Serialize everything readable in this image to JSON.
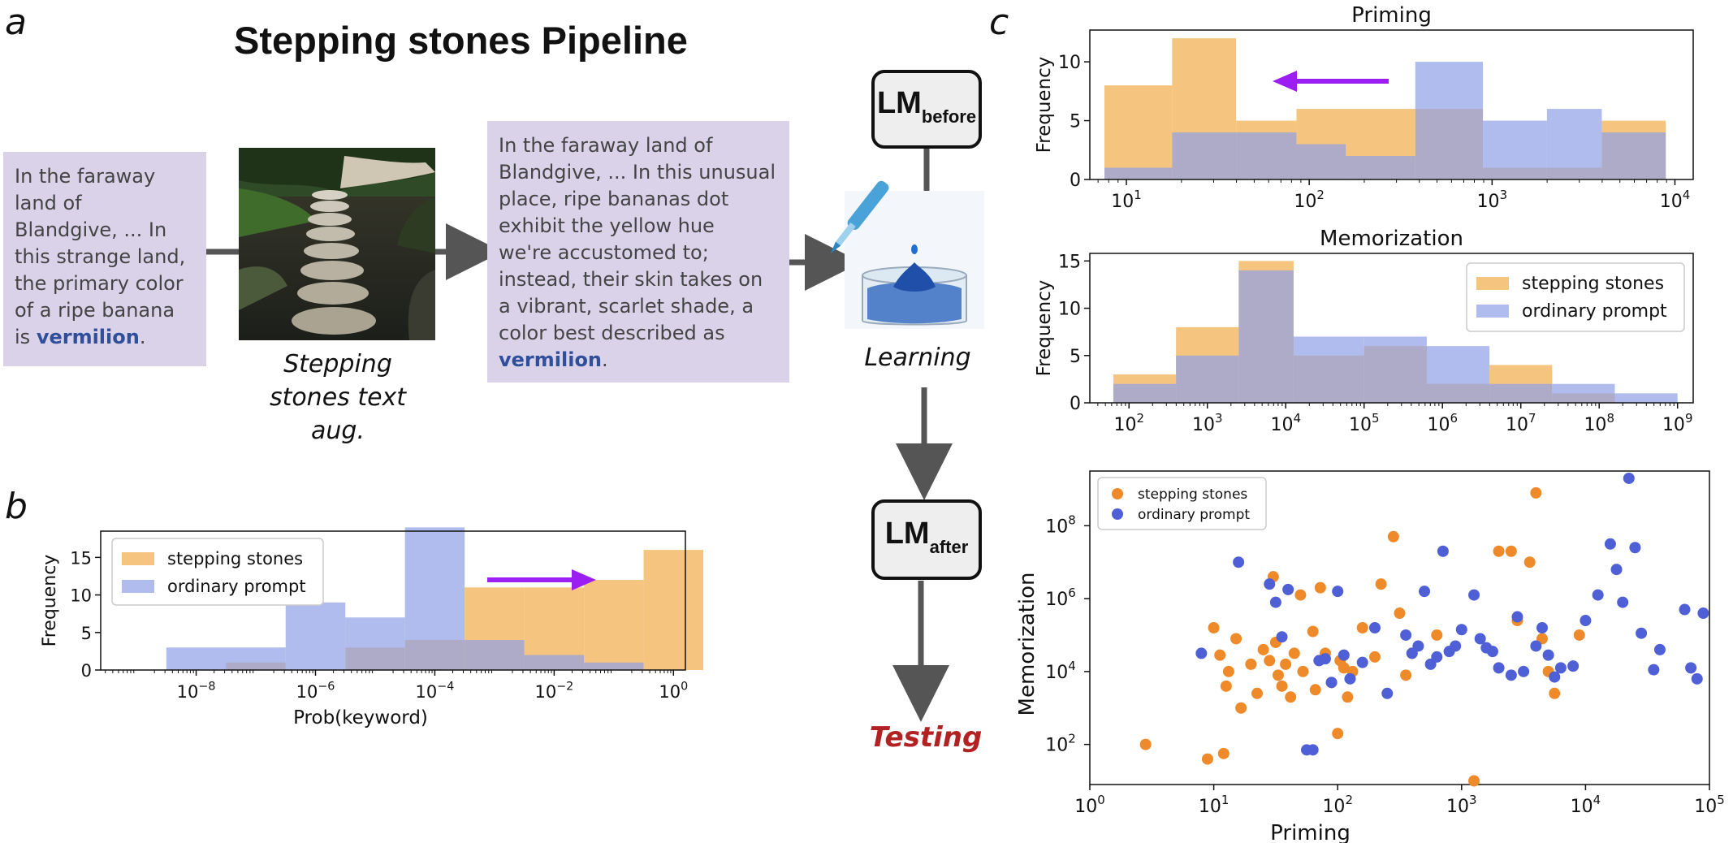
{
  "panel_labels": {
    "a": "a",
    "b": "b",
    "c": "c"
  },
  "pipeline": {
    "title": "Stepping stones Pipeline",
    "input_text": {
      "lines": [
        "In the faraway",
        "land of",
        "Blandgive, ... In",
        "this strange land,",
        "the primary color",
        "of a ripe banana"
      ],
      "last_prefix": "is ",
      "keyword": "vermilion",
      "last_suffix": "."
    },
    "augmented_text": {
      "lines": [
        "In the faraway land of",
        "Blandgive, ... In this unusual",
        "place, ripe bananas dot",
        "exhibit the yellow hue",
        "we're accustomed to;",
        "instead, their skin takes on",
        "a vibrant, scarlet shade, a",
        "color best described as"
      ],
      "keyword": "vermilion",
      "last_suffix": "."
    },
    "stepping_caption": [
      "Stepping",
      "stones text",
      "aug."
    ],
    "learning_caption": "Learning",
    "lm_before": {
      "main": "LM",
      "sub": "before"
    },
    "lm_after": {
      "main": "LM",
      "sub": "after"
    },
    "testing_label": "Testing"
  },
  "colors": {
    "stepping": "#f5c57f",
    "ordinary": "#8f9fe6",
    "overlap": "#9a8aa2",
    "arrow": "#9b1ff2",
    "scatter_stepping": "#ef8a2a",
    "scatter_ordinary": "#4f5fd6"
  },
  "chart_data": [
    {
      "panel": "b",
      "type": "histogram",
      "title": "",
      "xlabel": "Prob(keyword)",
      "ylabel": "Frequency",
      "x_scale": "log",
      "xlim_exp": [
        -9.6,
        0.2
      ],
      "ylim": [
        0,
        18.5
      ],
      "x_tick_exps": [
        -8,
        -6,
        -4,
        -2,
        0
      ],
      "y_ticks": [
        0,
        5,
        10,
        15
      ],
      "legend": {
        "position": "top-left",
        "entries": [
          "stepping stones",
          "ordinary prompt"
        ]
      },
      "series": [
        {
          "name": "stepping stones",
          "bin_edges_exp": [
            -8.5,
            -7.5,
            -6.5,
            -5.5,
            -4.5,
            -3.5,
            -2.5,
            -1.5,
            -0.5,
            0.5
          ],
          "counts": [
            0,
            1,
            0,
            3,
            4,
            11,
            11,
            12,
            16
          ]
        },
        {
          "name": "ordinary prompt",
          "bin_edges_exp": [
            -8.5,
            -6.5,
            -5.5,
            -4.5,
            -3.5,
            -2.5,
            -1.5,
            -0.5
          ],
          "counts": [
            3,
            9,
            7,
            19,
            4,
            2,
            1
          ]
        }
      ],
      "annotation": "arrow pointing right"
    },
    {
      "panel": "c-top",
      "type": "histogram",
      "title": "Priming",
      "xlabel": "",
      "ylabel": "Frequency",
      "x_scale": "log",
      "xlim_exp": [
        0.8,
        4.1
      ],
      "ylim": [
        0,
        12.7
      ],
      "x_tick_exps": [
        1,
        2,
        3,
        4
      ],
      "y_ticks": [
        0,
        5,
        10
      ],
      "legend": null,
      "series": [
        {
          "name": "stepping stones",
          "bin_edges_exp": [
            0.88,
            1.25,
            1.6,
            1.93,
            2.58,
            2.95,
            3.3,
            3.6,
            3.95
          ],
          "counts": [
            8,
            12,
            5,
            6,
            6,
            1,
            1,
            5
          ]
        },
        {
          "name": "ordinary prompt",
          "bin_edges_exp": [
            0.88,
            1.25,
            1.6,
            1.93,
            2.2,
            2.58,
            2.95,
            3.3,
            3.6,
            3.95
          ],
          "counts": [
            1,
            4,
            4,
            3,
            2,
            10,
            5,
            6,
            4
          ]
        }
      ],
      "annotation": "arrow pointing left"
    },
    {
      "panel": "c-middle",
      "type": "histogram",
      "title": "Memorization",
      "xlabel": "",
      "ylabel": "Frequency",
      "x_scale": "log",
      "xlim_exp": [
        1.5,
        9.2
      ],
      "ylim": [
        0,
        15.8
      ],
      "x_tick_exps": [
        2,
        3,
        4,
        5,
        6,
        7,
        8,
        9
      ],
      "y_ticks": [
        0,
        5,
        10,
        15
      ],
      "legend": {
        "position": "top-right",
        "entries": [
          "stepping stones",
          "ordinary prompt"
        ]
      },
      "series": [
        {
          "name": "stepping stones",
          "bin_edges_exp": [
            1.8,
            2.6,
            3.4,
            4.1,
            5.0,
            5.8,
            6.6,
            7.4,
            8.2,
            9.0
          ],
          "counts": [
            3,
            8,
            15,
            5,
            6,
            2,
            4,
            1,
            0
          ]
        },
        {
          "name": "ordinary prompt",
          "bin_edges_exp": [
            1.8,
            2.6,
            3.4,
            4.1,
            5.0,
            5.8,
            6.6,
            7.4,
            8.2,
            9.0
          ],
          "counts": [
            2,
            5,
            14,
            7,
            7,
            6,
            2,
            2,
            1
          ]
        }
      ]
    },
    {
      "panel": "c-bottom",
      "type": "scatter",
      "title": "",
      "xlabel": "Priming",
      "ylabel": "Memorization",
      "x_scale": "log",
      "y_scale": "log",
      "xlim_exp": [
        0,
        5
      ],
      "ylim_exp": [
        0.9,
        9.5
      ],
      "x_tick_exps": [
        0,
        1,
        2,
        3,
        4,
        5
      ],
      "y_tick_exps": [
        2,
        4,
        6,
        8
      ],
      "legend": {
        "position": "top-left",
        "entries": [
          "stepping stones",
          "ordinary prompt"
        ]
      },
      "series": [
        {
          "name": "stepping stones",
          "points_exp": [
            [
              0.45,
              2.0
            ],
            [
              0.95,
              1.6
            ],
            [
              1.0,
              5.2
            ],
            [
              1.05,
              4.45
            ],
            [
              1.08,
              1.75
            ],
            [
              1.1,
              3.6
            ],
            [
              1.12,
              4.0
            ],
            [
              1.18,
              4.9
            ],
            [
              1.22,
              3.0
            ],
            [
              1.3,
              4.2
            ],
            [
              1.35,
              3.4
            ],
            [
              1.4,
              4.6
            ],
            [
              1.45,
              4.3
            ],
            [
              1.48,
              6.6
            ],
            [
              1.5,
              4.8
            ],
            [
              1.52,
              3.9
            ],
            [
              1.55,
              3.6
            ],
            [
              1.58,
              4.2
            ],
            [
              1.62,
              3.3
            ],
            [
              1.65,
              4.5
            ],
            [
              1.7,
              6.1
            ],
            [
              1.72,
              4.0
            ],
            [
              1.8,
              5.1
            ],
            [
              1.82,
              3.5
            ],
            [
              1.86,
              6.3
            ],
            [
              1.9,
              4.5
            ],
            [
              1.95,
              3.7
            ],
            [
              2.0,
              2.3
            ],
            [
              2.02,
              4.3
            ],
            [
              2.05,
              4.1
            ],
            [
              2.08,
              3.3
            ],
            [
              2.12,
              4.0
            ],
            [
              2.2,
              5.2
            ],
            [
              2.3,
              4.4
            ],
            [
              2.35,
              6.4
            ],
            [
              2.45,
              7.7
            ],
            [
              2.5,
              5.6
            ],
            [
              2.55,
              3.9
            ],
            [
              2.6,
              4.5
            ],
            [
              2.8,
              5.0
            ],
            [
              3.1,
              1.0
            ],
            [
              3.3,
              7.3
            ],
            [
              3.4,
              7.3
            ],
            [
              3.45,
              5.4
            ],
            [
              3.55,
              7.0
            ],
            [
              3.6,
              8.9
            ],
            [
              3.65,
              4.9
            ],
            [
              3.7,
              4.0
            ],
            [
              3.75,
              3.4
            ],
            [
              3.95,
              5.0
            ]
          ]
        },
        {
          "name": "ordinary prompt",
          "points_exp": [
            [
              0.9,
              4.5
            ],
            [
              1.2,
              7.0
            ],
            [
              1.45,
              6.4
            ],
            [
              1.5,
              5.9
            ],
            [
              1.55,
              4.95
            ],
            [
              1.6,
              6.25
            ],
            [
              1.75,
              1.85
            ],
            [
              1.8,
              1.85
            ],
            [
              1.85,
              4.3
            ],
            [
              1.9,
              4.35
            ],
            [
              1.95,
              3.7
            ],
            [
              2.0,
              6.2
            ],
            [
              2.05,
              4.45
            ],
            [
              2.1,
              3.8
            ],
            [
              2.2,
              4.25
            ],
            [
              2.3,
              5.2
            ],
            [
              2.4,
              3.4
            ],
            [
              2.55,
              5.0
            ],
            [
              2.6,
              4.5
            ],
            [
              2.65,
              4.7
            ],
            [
              2.7,
              6.2
            ],
            [
              2.75,
              4.2
            ],
            [
              2.8,
              4.4
            ],
            [
              2.85,
              7.3
            ],
            [
              2.9,
              4.55
            ],
            [
              2.95,
              4.7
            ],
            [
              3.0,
              5.15
            ],
            [
              3.1,
              6.1
            ],
            [
              3.15,
              4.9
            ],
            [
              3.2,
              4.65
            ],
            [
              3.25,
              4.55
            ],
            [
              3.3,
              4.1
            ],
            [
              3.4,
              3.9
            ],
            [
              3.45,
              5.5
            ],
            [
              3.5,
              4.0
            ],
            [
              3.6,
              4.7
            ],
            [
              3.65,
              5.2
            ],
            [
              3.7,
              4.45
            ],
            [
              3.75,
              3.85
            ],
            [
              3.8,
              4.1
            ],
            [
              3.9,
              4.15
            ],
            [
              4.0,
              5.4
            ],
            [
              4.1,
              6.1
            ],
            [
              4.2,
              7.5
            ],
            [
              4.25,
              6.8
            ],
            [
              4.3,
              5.9
            ],
            [
              4.35,
              9.3
            ],
            [
              4.4,
              7.4
            ],
            [
              4.45,
              5.05
            ],
            [
              4.55,
              4.05
            ],
            [
              4.6,
              4.6
            ],
            [
              4.8,
              5.7
            ],
            [
              4.85,
              4.1
            ],
            [
              4.9,
              3.8
            ],
            [
              4.95,
              5.6
            ]
          ]
        }
      ]
    }
  ]
}
